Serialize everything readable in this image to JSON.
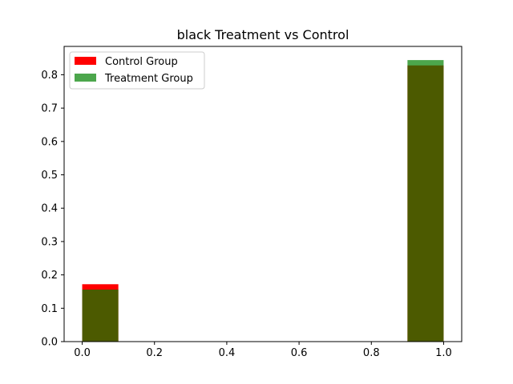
{
  "chart_data": {
    "type": "bar",
    "title": "black Treatment vs Control",
    "xlabel": "",
    "ylabel": "",
    "xlim": [
      -0.05,
      1.05
    ],
    "ylim": [
      0.0,
      0.885
    ],
    "x_ticks": [
      0.0,
      0.2,
      0.4,
      0.6,
      0.8,
      1.0
    ],
    "x_tick_labels": [
      "0.0",
      "0.2",
      "0.4",
      "0.6",
      "0.8",
      "1.0"
    ],
    "y_ticks": [
      0.0,
      0.1,
      0.2,
      0.3,
      0.4,
      0.5,
      0.6,
      0.7,
      0.8
    ],
    "y_tick_labels": [
      "0.0",
      "0.1",
      "0.2",
      "0.3",
      "0.4",
      "0.5",
      "0.6",
      "0.7",
      "0.8"
    ],
    "grid": false,
    "legend_position": "top-left",
    "series": [
      {
        "name": "Control Group",
        "color": "#ff0000",
        "alpha": 1.0,
        "bins": [
          {
            "x0": 0.0,
            "x1": 0.1,
            "value": 0.172
          },
          {
            "x0": 0.9,
            "x1": 1.0,
            "value": 0.828
          }
        ]
      },
      {
        "name": "Treatment Group",
        "color": "#008000",
        "alpha": 0.7,
        "bins": [
          {
            "x0": 0.0,
            "x1": 0.1,
            "value": 0.156
          },
          {
            "x0": 0.9,
            "x1": 1.0,
            "value": 0.844
          }
        ]
      }
    ]
  }
}
